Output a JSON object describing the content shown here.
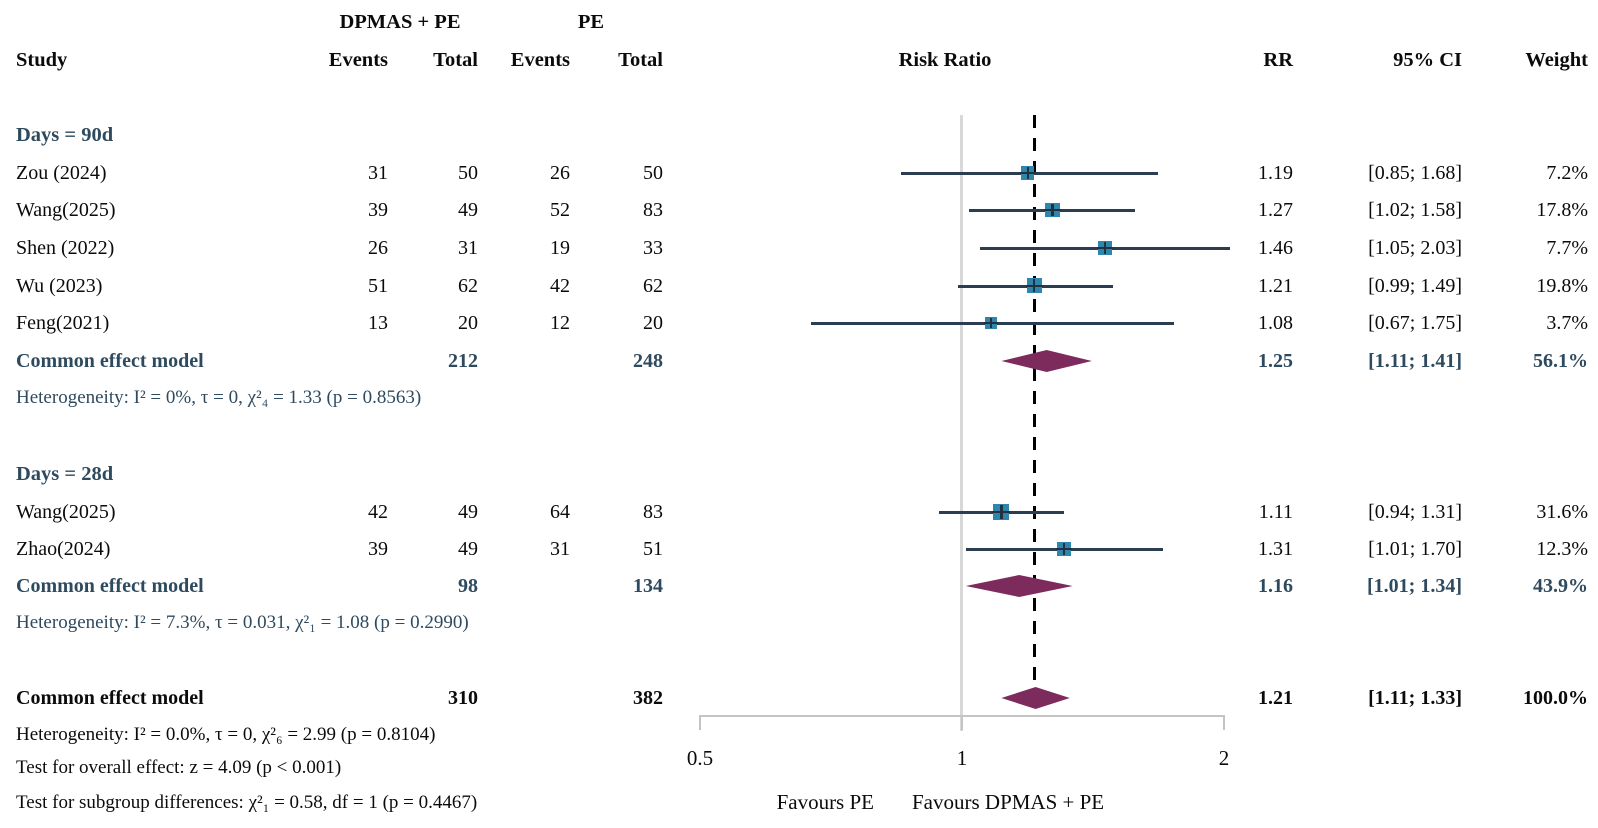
{
  "header": {
    "study": "Study",
    "treat_group": "DPMAS + PE",
    "ctrl_group": "PE",
    "events": "Events",
    "total": "Total",
    "plot_title": "Risk Ratio",
    "rr": "RR",
    "ci": "95% CI",
    "weight": "Weight"
  },
  "axis": {
    "ticks": [
      "0.5",
      "1",
      "2"
    ],
    "favours_left": "Favours PE",
    "favours_right": "Favours DPMAS + PE"
  },
  "colors": {
    "subgroup_text": "#2E4A5E",
    "square": "#2E86AD",
    "square_cross": "#22303F",
    "ci_line": "#2B3D50",
    "diamond": "#7C2B5C",
    "reference_line": "#D8D8D8",
    "dashed_line": "#000000",
    "axis_line": "#C4C4C4",
    "text": "#0b0b0b"
  },
  "chart_data": {
    "type": "forest",
    "effect_measure": "Risk Ratio",
    "x_scale": "log",
    "x_ticks": [
      0.5,
      1,
      2
    ],
    "x_range": [
      0.5,
      2
    ],
    "reference_line": 1,
    "dashed_line_at": 1.21,
    "summary_label": "Common effect model",
    "groups": [
      {
        "label": "Days = 90d",
        "studies": [
          {
            "study": "Zou (2024)",
            "events_treat": 31,
            "total_treat": 50,
            "events_ctrl": 26,
            "total_ctrl": 50,
            "rr": 1.19,
            "ci_low": 0.85,
            "ci_high": 1.68,
            "weight_pct": 7.2
          },
          {
            "study": "Wang(2025)",
            "events_treat": 39,
            "total_treat": 49,
            "events_ctrl": 52,
            "total_ctrl": 83,
            "rr": 1.27,
            "ci_low": 1.02,
            "ci_high": 1.58,
            "weight_pct": 17.8
          },
          {
            "study": "Shen (2022)",
            "events_treat": 26,
            "total_treat": 31,
            "events_ctrl": 19,
            "total_ctrl": 33,
            "rr": 1.46,
            "ci_low": 1.05,
            "ci_high": 2.03,
            "weight_pct": 7.7
          },
          {
            "study": "Wu (2023)",
            "events_treat": 51,
            "total_treat": 62,
            "events_ctrl": 42,
            "total_ctrl": 62,
            "rr": 1.21,
            "ci_low": 0.99,
            "ci_high": 1.49,
            "weight_pct": 19.8
          },
          {
            "study": "Feng(2021)",
            "events_treat": 13,
            "total_treat": 20,
            "events_ctrl": 12,
            "total_ctrl": 20,
            "rr": 1.08,
            "ci_low": 0.67,
            "ci_high": 1.75,
            "weight_pct": 3.7
          }
        ],
        "summary": {
          "label": "Common effect model",
          "total_treat": 212,
          "total_ctrl": 248,
          "rr": 1.25,
          "ci_low": 1.11,
          "ci_high": 1.41,
          "weight_pct": 56.1
        },
        "heterogeneity": "Heterogeneity: I² = 0%, τ = 0, χ²₄ = 1.33 (p = 0.8563)"
      },
      {
        "label": "Days = 28d",
        "studies": [
          {
            "study": "Wang(2025)",
            "events_treat": 42,
            "total_treat": 49,
            "events_ctrl": 64,
            "total_ctrl": 83,
            "rr": 1.11,
            "ci_low": 0.94,
            "ci_high": 1.31,
            "weight_pct": 31.6
          },
          {
            "study": "Zhao(2024)",
            "events_treat": 39,
            "total_treat": 49,
            "events_ctrl": 31,
            "total_ctrl": 51,
            "rr": 1.31,
            "ci_low": 1.01,
            "ci_high": 1.7,
            "weight_pct": 12.3
          }
        ],
        "summary": {
          "label": "Common effect model",
          "total_treat": 98,
          "total_ctrl": 134,
          "rr": 1.16,
          "ci_low": 1.01,
          "ci_high": 1.34,
          "weight_pct": 43.9
        },
        "heterogeneity": "Heterogeneity: I² = 7.3%, τ = 0.031, χ²₁ = 1.08 (p = 0.2990)"
      }
    ],
    "overall": {
      "label": "Common effect model",
      "total_treat": 310,
      "total_ctrl": 382,
      "rr": 1.21,
      "ci_low": 1.11,
      "ci_high": 1.33,
      "weight_pct": 100.0,
      "heterogeneity": "Heterogeneity: I² = 0.0%, τ = 0, χ²₆ = 2.99 (p = 0.8104)",
      "test_overall": "Test for overall effect: z = 4.09 (p < 0.001)",
      "test_subgroup": "Test for subgroup differences: χ²₁ = 0.58, df = 1 (p = 0.4467)"
    },
    "footnote_labels": {
      "favours_left": "Favours PE",
      "favours_right": "Favours DPMAS + PE"
    }
  }
}
